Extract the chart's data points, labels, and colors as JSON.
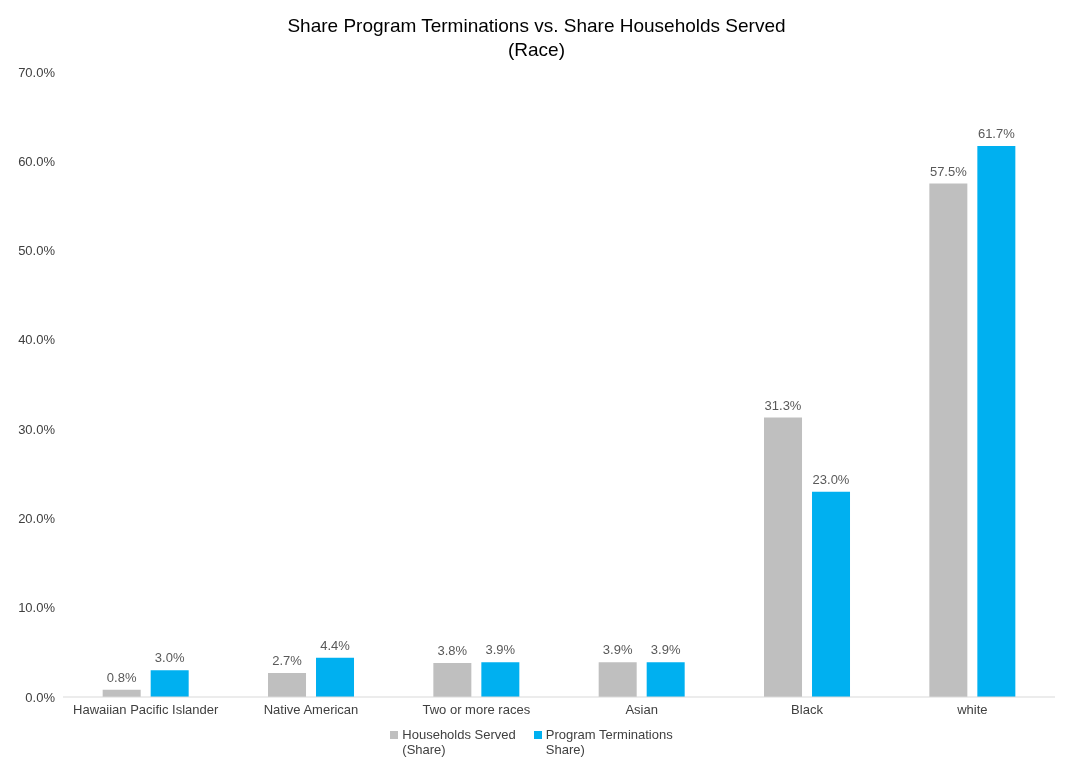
{
  "chart_data": {
    "type": "bar",
    "title": "Share Program Terminations vs. Share Households Served\n(Race)",
    "categories": [
      "Hawaiian Pacific Islander",
      "Native American",
      "Two or more races",
      "Asian",
      "Black",
      "white"
    ],
    "series": [
      {
        "name": "Households Served (Share)",
        "color": "#bfbfbf",
        "values": [
          0.8,
          2.7,
          3.8,
          3.9,
          31.3,
          57.5
        ],
        "value_labels": [
          "0.8%",
          "2.7%",
          "3.8%",
          "3.9%",
          "31.3%",
          "57.5%"
        ]
      },
      {
        "name": "Program Terminations Share)",
        "color": "#00b0f0",
        "values": [
          3.0,
          4.4,
          3.9,
          3.9,
          23.0,
          61.7
        ],
        "value_labels": [
          "3.0%",
          "4.4%",
          "3.9%",
          "3.9%",
          "23.0%",
          "61.7%"
        ]
      }
    ],
    "ylim": [
      0,
      70
    ],
    "yticks": [
      {
        "value": 0,
        "label": "0.0%"
      },
      {
        "value": 10,
        "label": "10.0%"
      },
      {
        "value": 20,
        "label": "20.0%"
      },
      {
        "value": 30,
        "label": "30.0%"
      },
      {
        "value": 40,
        "label": "40.0%"
      },
      {
        "value": 50,
        "label": "50.0%"
      },
      {
        "value": 60,
        "label": "60.0%"
      },
      {
        "value": 70,
        "label": "70.0%"
      }
    ],
    "grid": false,
    "legend": "bottom"
  }
}
